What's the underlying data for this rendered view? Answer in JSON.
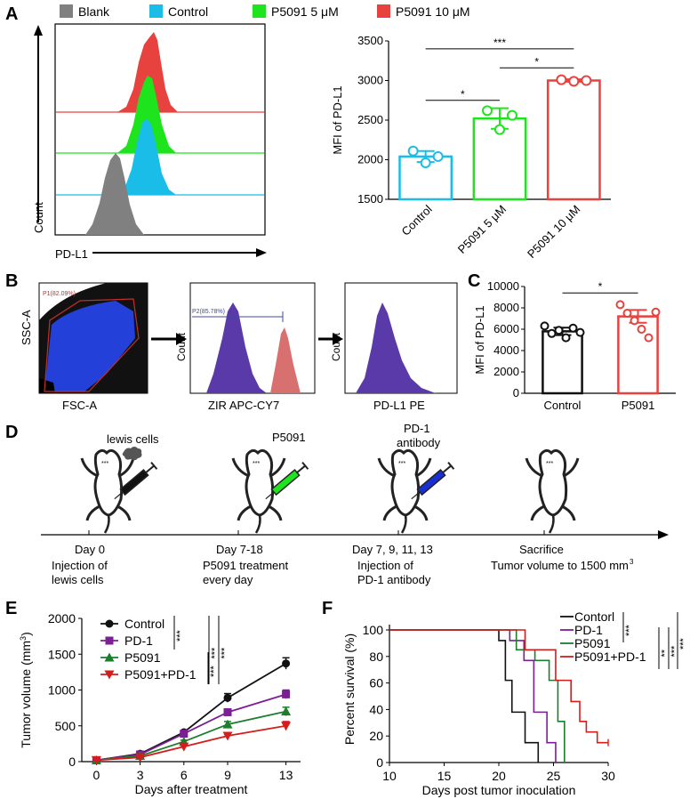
{
  "panel_labels": {
    "a": "A",
    "b": "B",
    "c": "C",
    "d": "D",
    "e": "E",
    "f": "F"
  },
  "colors": {
    "blank": "#808080",
    "control": "#19bde8",
    "p5_green": "#1ee41e",
    "p10_red": "#e8423f",
    "purple": "#5a3aa8",
    "blue": "#1a2fd0",
    "black": "#111111",
    "e_purple": "#7b1f93",
    "e_green": "#1c7d2c",
    "e_red": "#d41d1d"
  },
  "panel_a": {
    "legend": [
      {
        "label": "Blank",
        "color": "#808080"
      },
      {
        "label": "Control",
        "color": "#19bde8"
      },
      {
        "label": "P5091 5 μM",
        "color": "#1ee41e"
      },
      {
        "label": "P5091 10 μM",
        "color": "#e8423f"
      }
    ],
    "hist_xlabel": "PD-L1",
    "hist_ylabel": "Count"
  },
  "panel_b": {
    "scatter_x": "FSC-A",
    "scatter_y": "SSC-A",
    "gate1": "P1(82.09%)",
    "hist2_x": "ZIR APC-CY7",
    "hist2_y": "Count",
    "gate2": "P2(85.78%)",
    "hist3_x": "PD-L1 PE",
    "hist3_y": "Count"
  },
  "panel_d": {
    "items": [
      {
        "top": "lewis cells",
        "day": "Day 0",
        "desc1": "Injection of",
        "desc2": "lewis cells"
      },
      {
        "top": "P5091",
        "day": "Day 7-18",
        "desc1": "P5091 treatment",
        "desc2": "every day"
      },
      {
        "top": "PD-1",
        "top2": "antibody",
        "day": "Day 7, 9, 11, 13",
        "desc1": "Injection of",
        "desc2": "PD-1 antibody"
      },
      {
        "top": "",
        "day": "Sacrifice",
        "desc1": "Tumor volume to 1500 mm",
        "desc2": ""
      }
    ],
    "superscript": "3"
  },
  "chart_data": [
    {
      "id": "A-bar",
      "type": "bar",
      "categories": [
        "Control",
        "P5091 5 μM",
        "P5091 10 μM"
      ],
      "values": [
        2040,
        2520,
        3000
      ],
      "errors": [
        70,
        130,
        15
      ],
      "points": [
        [
          2110,
          1960,
          2040
        ],
        [
          2620,
          2380,
          2560
        ],
        [
          3010,
          2990,
          3000
        ]
      ],
      "colors": [
        "#19bde8",
        "#1ee41e",
        "#e8423f"
      ],
      "ylabel": "MFI of PD-L1",
      "ylim": [
        1500,
        3500
      ],
      "yticks": [
        1500,
        2000,
        2500,
        3000,
        3500
      ],
      "ytick_labels": [
        "1500",
        "2000",
        "2500",
        "3000",
        "3500"
      ],
      "sig": [
        {
          "from": 0,
          "to": 1,
          "label": "*",
          "level": 2750
        },
        {
          "from": 1,
          "to": 2,
          "label": "*",
          "level": 3160
        },
        {
          "from": 0,
          "to": 2,
          "label": "***",
          "level": 3400
        }
      ]
    },
    {
      "id": "C-bar",
      "type": "bar",
      "categories": [
        "Control",
        "P5091"
      ],
      "values": [
        5800,
        7200
      ],
      "errors": [
        350,
        600
      ],
      "points": [
        [
          6300,
          5600,
          5900,
          5200,
          6100,
          5700
        ],
        [
          8300,
          7500,
          6800,
          6000,
          5200,
          7600
        ]
      ],
      "colors": [
        "#111111",
        "#e8423f"
      ],
      "ylabel": "MFI of PD-L1",
      "ylim": [
        0,
        10000
      ],
      "yticks": [
        0,
        2000,
        4000,
        6000,
        8000,
        10000
      ],
      "ytick_labels": [
        "0",
        "2000",
        "4000",
        "6000",
        "8000",
        "10000"
      ],
      "sig": [
        {
          "from": 0,
          "to": 1,
          "label": "*",
          "level": 9400
        }
      ]
    },
    {
      "id": "E-line",
      "type": "line",
      "x": [
        0,
        3,
        6,
        9,
        13
      ],
      "xticks": [
        0,
        3,
        6,
        9,
        13
      ],
      "xtick_labels": [
        "0",
        "3",
        "6",
        "9",
        "13"
      ],
      "series": [
        {
          "name": "Control",
          "values": [
            20,
            110,
            410,
            890,
            1370
          ],
          "errors": [
            10,
            15,
            25,
            60,
            80
          ],
          "color": "#111111",
          "marker": "circle"
        },
        {
          "name": "PD-1",
          "values": [
            20,
            100,
            390,
            690,
            940
          ],
          "errors": [
            10,
            15,
            20,
            30,
            60
          ],
          "color": "#7b1f93",
          "marker": "square"
        },
        {
          "name": "P5091",
          "values": [
            20,
            80,
            280,
            520,
            700
          ],
          "errors": [
            10,
            10,
            20,
            40,
            60
          ],
          "color": "#1c7d2c",
          "marker": "triangle"
        },
        {
          "name": "P5091+PD-1",
          "values": [
            20,
            60,
            210,
            360,
            500
          ],
          "errors": [
            10,
            10,
            15,
            20,
            60
          ],
          "color": "#d41d1d",
          "marker": "invtriangle"
        }
      ],
      "title": "",
      "xlabel": "Days after treatment",
      "ylabel": "Tumor volume (mm",
      "ylabel_sup": "3",
      "ylabel_end": ")",
      "ylim": [
        0,
        2000
      ],
      "xlim": [
        -1,
        14
      ],
      "yticks": [
        0,
        500,
        1000,
        1500,
        2000
      ],
      "ytick_labels": [
        "0",
        "500",
        "1000",
        "1500",
        "2000"
      ],
      "sig_labels": [
        "***",
        "***",
        "***",
        "***"
      ]
    },
    {
      "id": "F-survival",
      "type": "line",
      "series": [
        {
          "name": "Contorl",
          "color": "#111111",
          "steps": [
            [
              10,
              100
            ],
            [
              20,
              100
            ],
            [
              20,
              92
            ],
            [
              20.6,
              92
            ],
            [
              20.6,
              62
            ],
            [
              21.2,
              62
            ],
            [
              21.2,
              38
            ],
            [
              22.4,
              38
            ],
            [
              22.4,
              15
            ],
            [
              23.6,
              15
            ],
            [
              23.6,
              0
            ]
          ]
        },
        {
          "name": "PD-1",
          "color": "#7b1f93",
          "steps": [
            [
              10,
              100
            ],
            [
              21,
              100
            ],
            [
              21,
              92
            ],
            [
              22.3,
              92
            ],
            [
              22.3,
              77
            ],
            [
              23.2,
              77
            ],
            [
              23.2,
              38
            ],
            [
              24.4,
              38
            ],
            [
              24.4,
              15
            ],
            [
              25.2,
              15
            ],
            [
              25.2,
              0
            ]
          ]
        },
        {
          "name": "P5091",
          "color": "#1c7d2c",
          "steps": [
            [
              10,
              100
            ],
            [
              21.6,
              100
            ],
            [
              21.6,
              85
            ],
            [
              23.3,
              85
            ],
            [
              23.3,
              77
            ],
            [
              24.6,
              77
            ],
            [
              24.6,
              62
            ],
            [
              25.4,
              62
            ],
            [
              25.4,
              31
            ],
            [
              26,
              31
            ],
            [
              26,
              0
            ]
          ]
        },
        {
          "name": "P5091+PD-1",
          "color": "#d41d1d",
          "steps": [
            [
              10,
              100
            ],
            [
              22.4,
              100
            ],
            [
              22.4,
              85
            ],
            [
              25.2,
              85
            ],
            [
              25.2,
              62
            ],
            [
              26.6,
              62
            ],
            [
              26.6,
              46
            ],
            [
              27.4,
              46
            ],
            [
              27.4,
              31
            ],
            [
              28,
              31
            ],
            [
              28,
              23
            ],
            [
              29,
              23
            ],
            [
              29,
              15
            ],
            [
              30,
              15
            ]
          ]
        }
      ],
      "xlabel": "Days post tumor inoculation",
      "ylabel": "Percent survival (%)",
      "xlim": [
        10,
        30
      ],
      "ylim": [
        0,
        100
      ],
      "xticks": [
        10,
        15,
        20,
        25,
        30
      ],
      "xtick_labels": [
        "10",
        "15",
        "20",
        "25",
        "30"
      ],
      "yticks": [
        0,
        20,
        40,
        60,
        80,
        100
      ],
      "ytick_labels": [
        "0",
        "20",
        "40",
        "60",
        "80",
        "100"
      ],
      "sig_labels": [
        "***",
        "**",
        "***",
        "***"
      ]
    }
  ]
}
